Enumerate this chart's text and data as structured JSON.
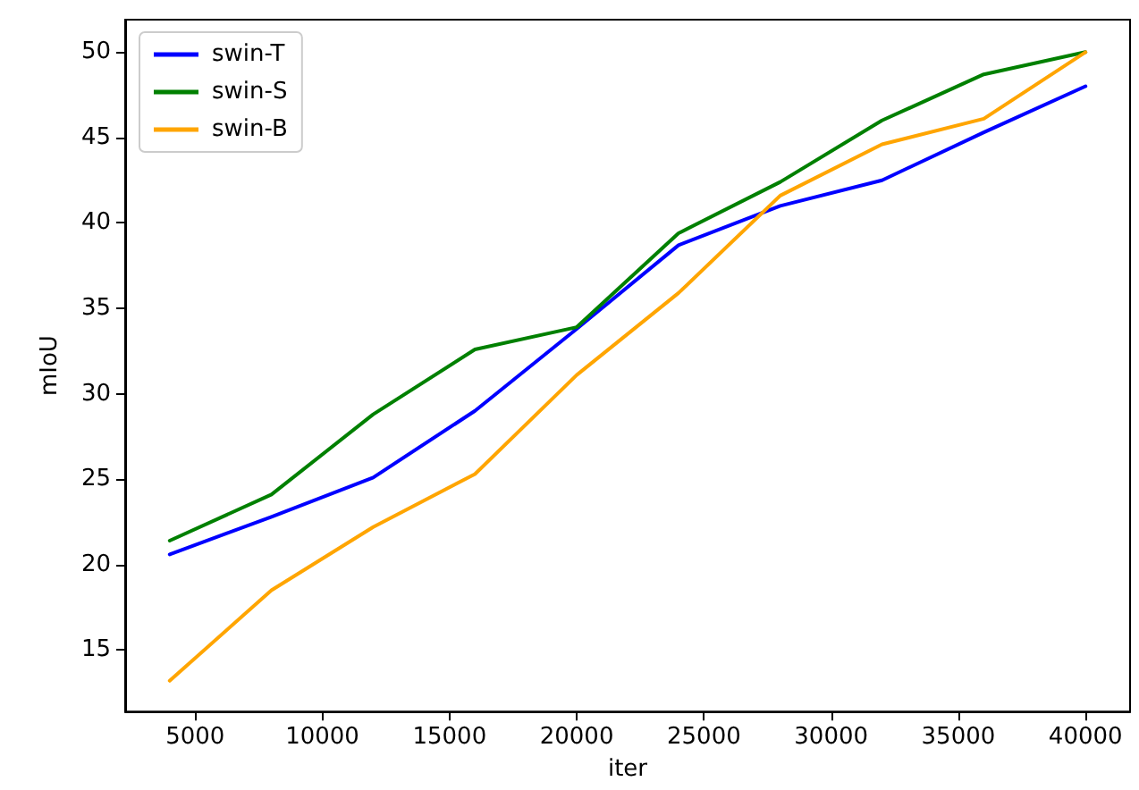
{
  "chart_data": {
    "type": "line",
    "xlabel": "iter",
    "ylabel": "mIoU",
    "x": [
      4000,
      8000,
      12000,
      16000,
      20000,
      24000,
      28000,
      32000,
      36000,
      40000
    ],
    "series": [
      {
        "name": "swin-T",
        "color": "#0000ff",
        "values": [
          20.6,
          22.8,
          25.1,
          29.0,
          33.8,
          38.7,
          41.0,
          42.5,
          45.3,
          48.0
        ]
      },
      {
        "name": "swin-S",
        "color": "#008000",
        "values": [
          21.4,
          24.1,
          28.8,
          32.6,
          33.9,
          39.4,
          42.4,
          46.0,
          48.7,
          50.0
        ]
      },
      {
        "name": "swin-B",
        "color": "#ffa500",
        "values": [
          13.2,
          18.5,
          22.2,
          25.3,
          31.1,
          35.9,
          41.6,
          44.6,
          46.1,
          50.0
        ]
      }
    ],
    "xlim": [
      2250,
      41750
    ],
    "xticks": [
      5000,
      10000,
      15000,
      20000,
      25000,
      30000,
      35000,
      40000
    ],
    "ylim": [
      11.4,
      51.9
    ],
    "yticks": [
      15,
      20,
      25,
      30,
      35,
      40,
      45,
      50
    ],
    "legend": "top left",
    "grid": false,
    "marker": "none",
    "line_style": "solid"
  }
}
